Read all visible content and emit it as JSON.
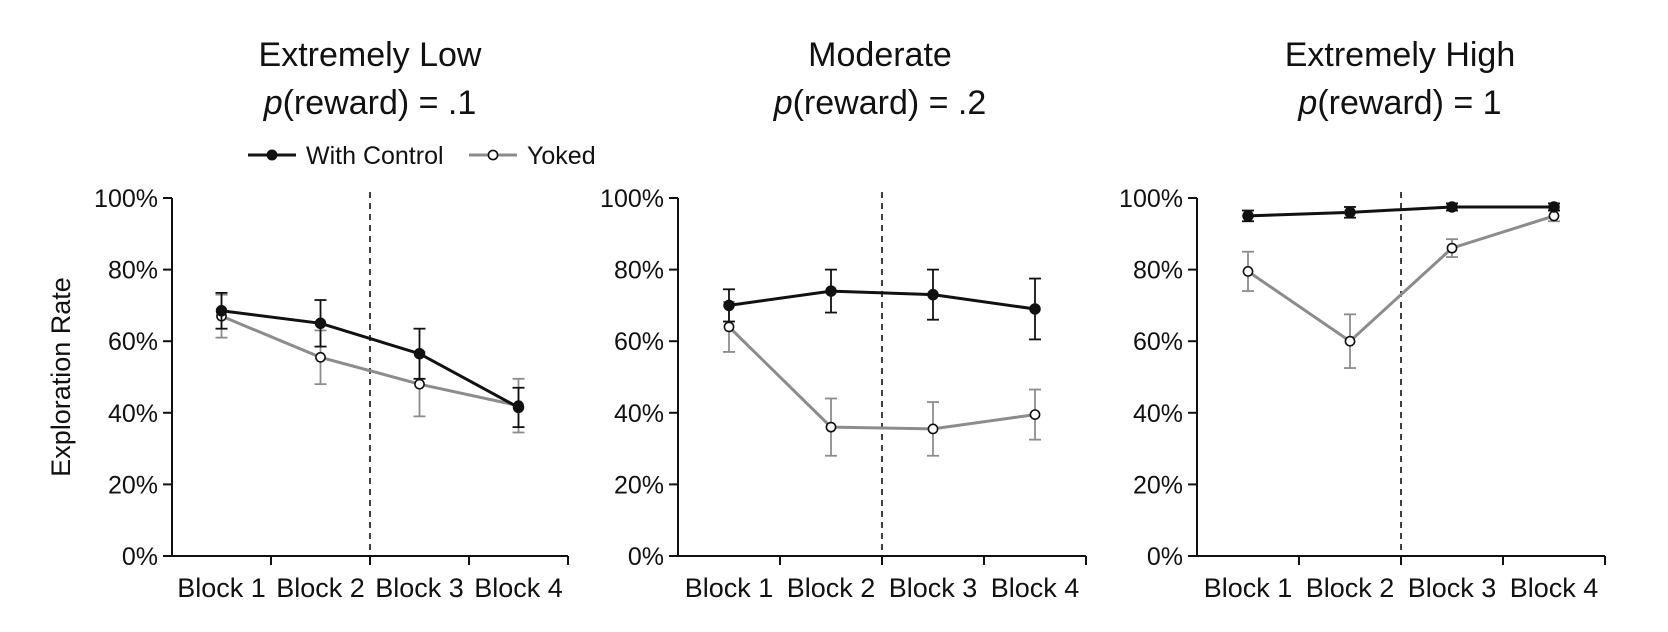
{
  "chart_data": [
    {
      "type": "line",
      "title": "Extremely Low",
      "subtitle_italic": "p",
      "subtitle_rest": "(reward) = .1",
      "ylabel": "Exploration Rate",
      "categories": [
        "Block 1",
        "Block 2",
        "Block 3",
        "Block 4"
      ],
      "ylim": [
        0,
        100
      ],
      "yticks": [
        "0%",
        "20%",
        "40%",
        "60%",
        "80%",
        "100%"
      ],
      "divider_after_block": 2,
      "series": [
        {
          "name": "With Control",
          "values": [
            68.5,
            65,
            56.5,
            41.5
          ],
          "err": [
            5,
            6.5,
            7,
            5.5
          ]
        },
        {
          "name": "Yoked",
          "values": [
            67,
            55.5,
            48,
            42
          ],
          "err": [
            6,
            7.5,
            9,
            7.5
          ]
        }
      ]
    },
    {
      "type": "line",
      "title": "Moderate",
      "subtitle_italic": "p",
      "subtitle_rest": "(reward) = .2",
      "ylabel": "",
      "categories": [
        "Block 1",
        "Block 2",
        "Block 3",
        "Block 4"
      ],
      "ylim": [
        0,
        100
      ],
      "yticks": [
        "0%",
        "20%",
        "40%",
        "60%",
        "80%",
        "100%"
      ],
      "divider_after_block": 2,
      "series": [
        {
          "name": "With Control",
          "values": [
            70,
            74,
            73,
            69
          ],
          "err": [
            4.5,
            6,
            7,
            8.5
          ]
        },
        {
          "name": "Yoked",
          "values": [
            64,
            36,
            35.5,
            39.5
          ],
          "err": [
            7,
            8,
            7.5,
            7
          ]
        }
      ]
    },
    {
      "type": "line",
      "title": "Extremely High",
      "subtitle_italic": "p",
      "subtitle_rest": "(reward) = 1",
      "ylabel": "",
      "categories": [
        "Block 1",
        "Block 2",
        "Block 3",
        "Block 4"
      ],
      "ylim": [
        0,
        100
      ],
      "yticks": [
        "0%",
        "20%",
        "40%",
        "60%",
        "80%",
        "100%"
      ],
      "divider_after_block": 2,
      "series": [
        {
          "name": "With Control",
          "values": [
            95,
            96,
            97.5,
            97.5
          ],
          "err": [
            1.5,
            1.5,
            1,
            1
          ]
        },
        {
          "name": "Yoked",
          "values": [
            79.5,
            60,
            86,
            95
          ],
          "err": [
            5.5,
            7.5,
            2.5,
            1.5
          ]
        }
      ]
    }
  ],
  "legend": {
    "position": "top-left of first panel",
    "items": [
      {
        "label": "With Control",
        "color": "#111111",
        "marker": "filled-circle"
      },
      {
        "label": "Yoked",
        "color": "#8c8c8c",
        "marker": "open-circle"
      }
    ]
  },
  "colors": {
    "with_control": "#111111",
    "yoked": "#8c8c8c",
    "axis": "#111111"
  }
}
